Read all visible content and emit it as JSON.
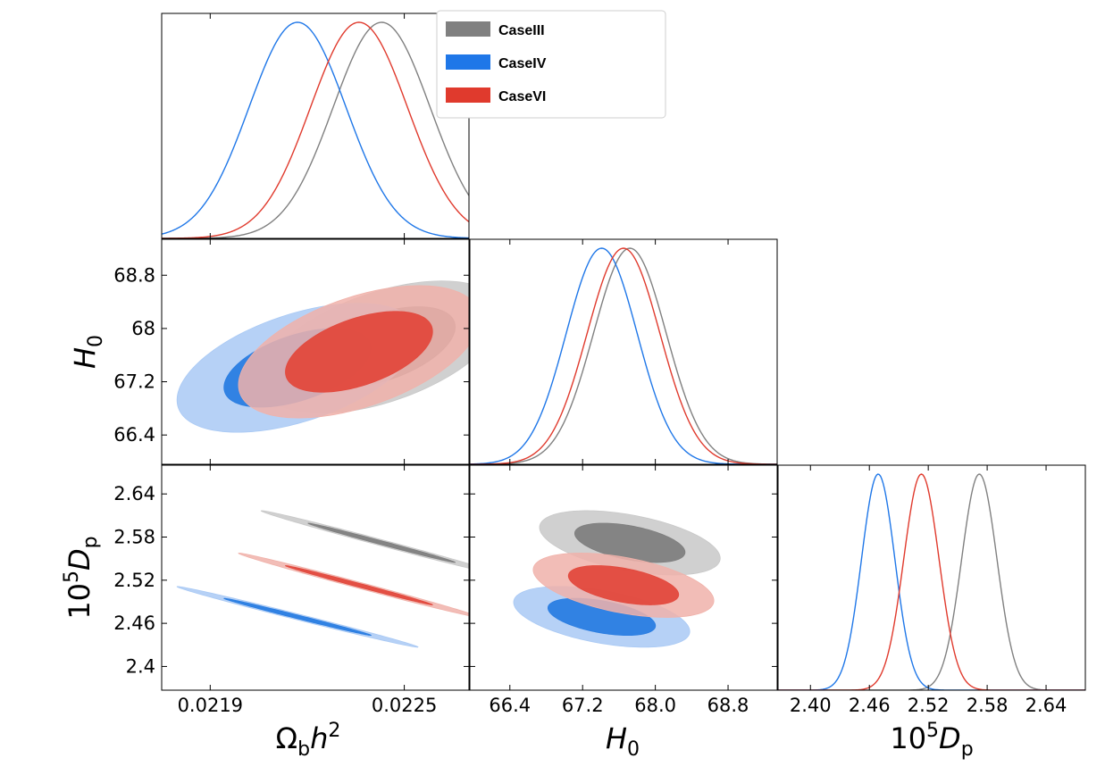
{
  "chart_data": {
    "type": "triangle-corner",
    "legend": {
      "placement": "top-center",
      "entries": [
        {
          "label": "CaseIII",
          "color": "#808080"
        },
        {
          "label": "CaseIV",
          "color": "#1f77e8"
        },
        {
          "label": "CaseVI",
          "color": "#e03a2d"
        }
      ]
    },
    "params": [
      {
        "key": "omb",
        "label_main": "Ω",
        "label_sub": "b",
        "label_tail": "h",
        "label_sup": "2",
        "range": [
          0.02175,
          0.0227
        ],
        "ticks": [
          0.0219,
          0.0225
        ],
        "tick_labels": [
          "0.0219",
          "0.0225"
        ]
      },
      {
        "key": "H0",
        "label_main": "H",
        "label_sub": "0",
        "range": [
          65.96,
          69.34
        ],
        "ticks": [
          66.4,
          67.2,
          68.0,
          68.8
        ],
        "tick_labels_y": [
          "66.4",
          "67.2",
          "68",
          "68.8"
        ],
        "tick_labels_x": [
          "66.4",
          "67.2",
          "68.0",
          "68.8"
        ]
      },
      {
        "key": "Dp",
        "label_pre": "10",
        "label_pre_sup": "5",
        "label_main": "D",
        "label_sub": "p",
        "range": [
          2.367,
          2.68
        ],
        "ticks": [
          2.4,
          2.46,
          2.52,
          2.58,
          2.64
        ],
        "tick_labels_y": [
          "2.4",
          "2.46",
          "2.52",
          "2.58",
          "2.64"
        ],
        "tick_labels_x": [
          "2.40",
          "2.46",
          "2.52",
          "2.58",
          "2.64"
        ]
      }
    ],
    "series": [
      {
        "name": "CaseIII",
        "color": "#808080",
        "color_light": "#c8c8c8",
        "color_dark": "#7f7f7f",
        "mean": [
          0.02243,
          67.72,
          2.572
        ],
        "sigma": [
          0.00015,
          0.4,
          0.018
        ],
        "corr": {
          "omb_H0": 0.5,
          "omb_Dp": -0.995,
          "H0_Dp": -0.48
        }
      },
      {
        "name": "CaseIV",
        "color": "#1f77e8",
        "color_light": "#a9c9f4",
        "color_dark": "#2a7de1",
        "mean": [
          0.02217,
          67.41,
          2.469
        ],
        "sigma": [
          0.00015,
          0.39,
          0.017
        ],
        "corr": {
          "omb_H0": 0.5,
          "omb_Dp": -0.995,
          "H0_Dp": -0.48
        }
      },
      {
        "name": "CaseVI",
        "color": "#e03a2d",
        "color_light": "#f0b2aa",
        "color_dark": "#e2493d",
        "mean": [
          0.02236,
          67.65,
          2.513
        ],
        "sigma": [
          0.00015,
          0.4,
          0.018
        ],
        "corr": {
          "omb_H0": 0.5,
          "omb_Dp": -0.995,
          "H0_Dp": -0.48
        }
      }
    ]
  }
}
